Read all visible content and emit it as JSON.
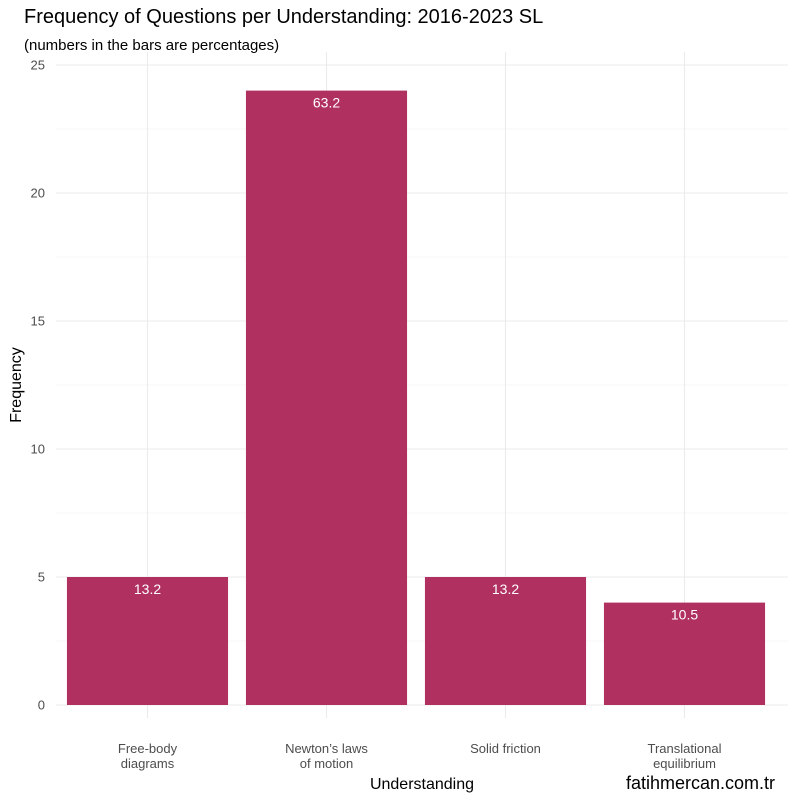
{
  "chart_data": {
    "type": "bar",
    "title": "Frequency of Questions per Understanding: 2016-2023 SL",
    "subtitle": "(numbers in the bars are percentages)",
    "xlabel": "Understanding",
    "ylabel": "Frequency",
    "categories": [
      [
        "Free-body",
        "diagrams"
      ],
      [
        "Newton’s laws",
        "of motion"
      ],
      [
        "Solid friction"
      ],
      [
        "Translational",
        "equilibrium"
      ]
    ],
    "values": [
      5,
      24,
      5,
      4
    ],
    "percent_labels": [
      "13.2",
      "63.2",
      "13.2",
      "10.5"
    ],
    "ylim": [
      0,
      25
    ],
    "yticks": [
      0,
      5,
      10,
      15,
      20,
      25
    ],
    "grid": true,
    "bar_color": "#B03060"
  },
  "watermark": "fatihmercan.com.tr"
}
